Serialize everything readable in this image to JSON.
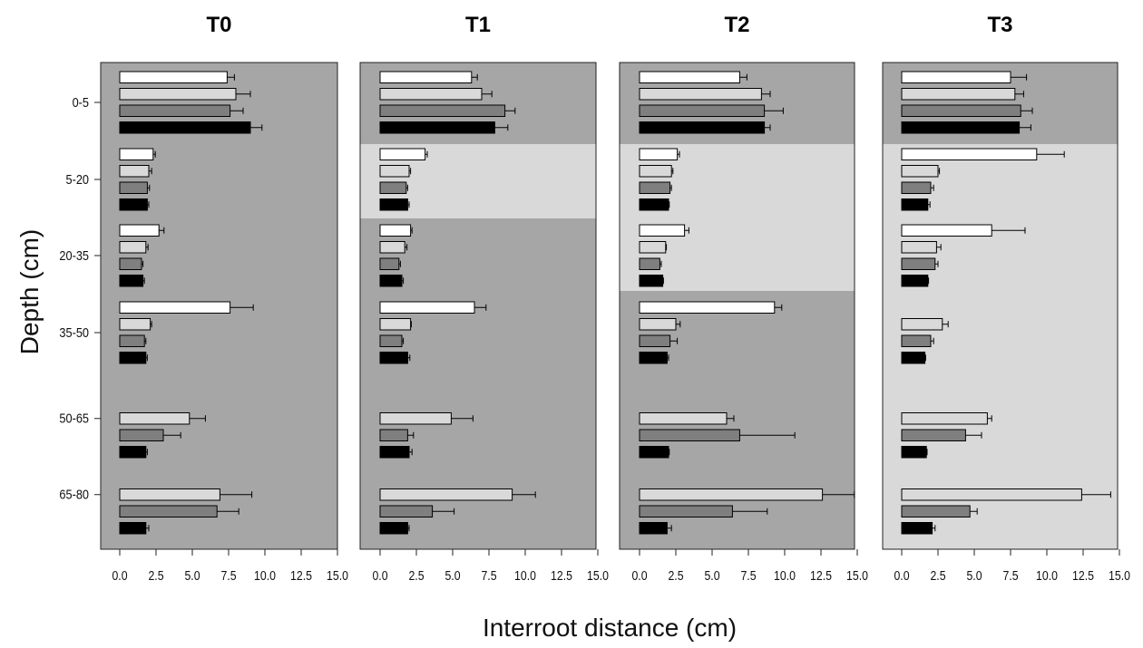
{
  "chart_data": {
    "type": "bar",
    "orientation": "horizontal",
    "xlabel": "Interroot distance (cm)",
    "ylabel": "Depth (cm)",
    "xlim": [
      0,
      15
    ],
    "x_ticks": [
      "0.0",
      "2.5",
      "5.0",
      "7.5",
      "10.0",
      "12.5",
      "15.0"
    ],
    "categories": [
      "0-5",
      "5-20",
      "20-35",
      "35-50",
      "50-65",
      "65-80"
    ],
    "series_colors": [
      "#ffffff",
      "#d9d9d9",
      "#7f7f7f",
      "#000000"
    ],
    "shading_colors": {
      "dark": "#a6a6a6",
      "light": "#d9d9d9"
    },
    "panels": [
      {
        "title": "T0",
        "shading": [
          "dark",
          "dark",
          "dark",
          "dark",
          "dark",
          "dark"
        ],
        "series": [
          {
            "values": [
              7.4,
              2.3,
              2.7,
              7.6,
              null,
              null
            ],
            "errors": [
              0.5,
              0.15,
              0.35,
              1.6,
              null,
              null
            ]
          },
          {
            "values": [
              8.0,
              2.0,
              1.8,
              2.1,
              4.8,
              6.9
            ],
            "errors": [
              1.0,
              0.2,
              0.15,
              0.1,
              1.1,
              2.2
            ]
          },
          {
            "values": [
              7.6,
              1.9,
              1.5,
              1.7,
              3.0,
              6.7
            ],
            "errors": [
              0.9,
              0.15,
              0.1,
              0.1,
              1.2,
              1.5
            ]
          },
          {
            "values": [
              9.0,
              1.9,
              1.6,
              1.8,
              1.8,
              1.8
            ],
            "errors": [
              0.8,
              0.1,
              0.1,
              0.1,
              0.1,
              0.2
            ]
          }
        ]
      },
      {
        "title": "T1",
        "shading": [
          "dark",
          "light",
          "dark",
          "dark",
          "dark",
          "dark"
        ],
        "series": [
          {
            "values": [
              6.3,
              3.1,
              2.1,
              6.5,
              null,
              null
            ],
            "errors": [
              0.4,
              0.15,
              0.1,
              0.8,
              null,
              null
            ]
          },
          {
            "values": [
              7.0,
              2.0,
              1.7,
              2.1,
              4.9,
              9.1
            ],
            "errors": [
              0.7,
              0.1,
              0.15,
              0.05,
              1.5,
              1.6
            ]
          },
          {
            "values": [
              8.6,
              1.8,
              1.3,
              1.5,
              1.9,
              3.6
            ],
            "errors": [
              0.7,
              0.1,
              0.1,
              0.1,
              0.4,
              1.5
            ]
          },
          {
            "values": [
              7.9,
              1.9,
              1.5,
              1.9,
              2.0,
              1.9
            ],
            "errors": [
              0.9,
              0.1,
              0.1,
              0.15,
              0.2,
              0.1
            ]
          }
        ]
      },
      {
        "title": "T2",
        "shading": [
          "dark",
          "light",
          "light",
          "dark",
          "dark",
          "dark"
        ],
        "series": [
          {
            "values": [
              6.9,
              2.6,
              3.1,
              9.3,
              null,
              null
            ],
            "errors": [
              0.5,
              0.15,
              0.3,
              0.5,
              null,
              null
            ]
          },
          {
            "values": [
              8.4,
              2.2,
              1.8,
              2.5,
              6.0,
              12.6
            ],
            "errors": [
              0.6,
              0.1,
              0.05,
              0.3,
              0.5,
              2.2
            ]
          },
          {
            "values": [
              8.6,
              2.1,
              1.4,
              2.1,
              6.9,
              6.4
            ],
            "errors": [
              1.3,
              0.1,
              0.1,
              0.5,
              3.8,
              2.4
            ]
          },
          {
            "values": [
              8.6,
              2.0,
              1.6,
              1.9,
              2.0,
              1.9
            ],
            "errors": [
              0.4,
              0.05,
              0.05,
              0.1,
              0.05,
              0.3
            ]
          }
        ]
      },
      {
        "title": "T3",
        "shading": [
          "dark",
          "light",
          "light",
          "light",
          "light",
          "light"
        ],
        "series": [
          {
            "values": [
              7.5,
              9.3,
              6.2,
              null,
              null,
              null
            ],
            "errors": [
              1.1,
              1.9,
              2.3,
              null,
              null,
              null
            ]
          },
          {
            "values": [
              7.8,
              2.5,
              2.4,
              2.8,
              5.9,
              12.4
            ],
            "errors": [
              0.6,
              0.1,
              0.3,
              0.4,
              0.3,
              2.0
            ]
          },
          {
            "values": [
              8.2,
              2.0,
              2.3,
              2.0,
              4.4,
              4.7
            ],
            "errors": [
              0.8,
              0.2,
              0.2,
              0.2,
              1.1,
              0.5
            ]
          },
          {
            "values": [
              8.1,
              1.8,
              1.8,
              1.6,
              1.7,
              2.1
            ],
            "errors": [
              0.8,
              0.15,
              0.05,
              0.05,
              0.05,
              0.2
            ]
          }
        ]
      }
    ]
  }
}
